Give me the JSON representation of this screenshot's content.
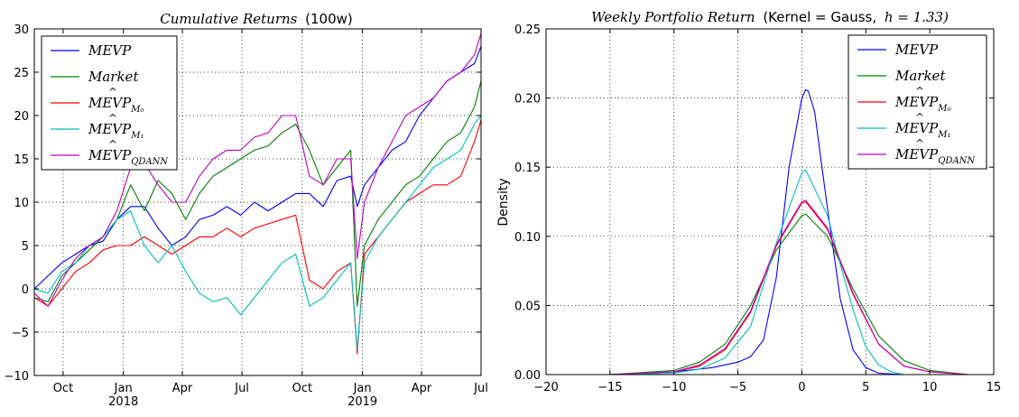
{
  "chart_data": [
    {
      "type": "line",
      "title_italic": "Cumulative Returns",
      "title_plain": "(100w)",
      "ylim": [
        -10,
        30
      ],
      "yticks": [
        -10,
        -5,
        0,
        5,
        10,
        15,
        20,
        25,
        30
      ],
      "ytick_labels": [
        "−10",
        "−5",
        "0",
        "5",
        "10",
        "15",
        "20",
        "25",
        "30"
      ],
      "xlim": [
        "2017-08-18",
        "2019-07-01"
      ],
      "xticks": [
        {
          "date": "2017-10-01",
          "label": "Oct",
          "year": ""
        },
        {
          "date": "2018-01-01",
          "label": "Jan",
          "year": "2018"
        },
        {
          "date": "2018-04-01",
          "label": "Apr",
          "year": ""
        },
        {
          "date": "2018-07-01",
          "label": "Jul",
          "year": ""
        },
        {
          "date": "2018-10-01",
          "label": "Oct",
          "year": ""
        },
        {
          "date": "2019-01-01",
          "label": "Jan",
          "year": "2019"
        },
        {
          "date": "2019-04-01",
          "label": "Apr",
          "year": ""
        },
        {
          "date": "2019-07-01",
          "label": "Jul",
          "year": ""
        }
      ],
      "grid": true,
      "legend_position": "upper-left",
      "series": [
        {
          "name": "MEVP",
          "legend_sub": "",
          "color": "#0000ff",
          "x": [
            "2017-08-18",
            "2017-09-08",
            "2017-09-29",
            "2017-10-20",
            "2017-11-10",
            "2017-12-01",
            "2017-12-22",
            "2018-01-12",
            "2018-02-02",
            "2018-02-23",
            "2018-03-16",
            "2018-04-06",
            "2018-04-27",
            "2018-05-18",
            "2018-06-08",
            "2018-06-29",
            "2018-07-20",
            "2018-08-10",
            "2018-08-31",
            "2018-09-21",
            "2018-10-12",
            "2018-11-02",
            "2018-11-23",
            "2018-12-14",
            "2018-12-24",
            "2019-01-04",
            "2019-01-25",
            "2019-02-15",
            "2019-03-08",
            "2019-03-29",
            "2019-04-19",
            "2019-05-10",
            "2019-05-31",
            "2019-06-21",
            "2019-07-01"
          ],
          "y": [
            0,
            1.5,
            3,
            4,
            5,
            5.5,
            8,
            9.5,
            9.5,
            7,
            5,
            6,
            8,
            8.5,
            9.5,
            8.5,
            10,
            9,
            10,
            11,
            11,
            9.5,
            12.5,
            13,
            9.5,
            12,
            14,
            16,
            17,
            20,
            22,
            24,
            25,
            26,
            28
          ]
        },
        {
          "name": "Market",
          "legend_sub": "",
          "color": "#008000",
          "x": [
            "2017-08-18",
            "2017-09-08",
            "2017-09-29",
            "2017-10-20",
            "2017-11-10",
            "2017-12-01",
            "2017-12-22",
            "2018-01-12",
            "2018-02-02",
            "2018-02-23",
            "2018-03-16",
            "2018-04-06",
            "2018-04-27",
            "2018-05-18",
            "2018-06-08",
            "2018-06-29",
            "2018-07-20",
            "2018-08-10",
            "2018-08-31",
            "2018-09-21",
            "2018-10-12",
            "2018-11-02",
            "2018-11-23",
            "2018-12-14",
            "2018-12-24",
            "2019-01-04",
            "2019-01-25",
            "2019-02-15",
            "2019-03-08",
            "2019-03-29",
            "2019-04-19",
            "2019-05-10",
            "2019-05-31",
            "2019-06-21",
            "2019-07-01"
          ],
          "y": [
            -1,
            -1.5,
            1.5,
            3,
            4.5,
            6,
            8,
            12,
            9,
            12.5,
            11,
            8,
            11,
            13,
            14,
            15,
            16,
            16.5,
            18,
            19,
            16,
            12,
            14,
            16,
            -2,
            5,
            8,
            10,
            12,
            13,
            15,
            17,
            18,
            21,
            24
          ]
        },
        {
          "name": "MEVP",
          "legend_sub": "M₀",
          "color": "#ff0000",
          "x": [
            "2017-08-18",
            "2017-09-08",
            "2017-09-29",
            "2017-10-20",
            "2017-11-10",
            "2017-12-01",
            "2017-12-22",
            "2018-01-12",
            "2018-02-02",
            "2018-02-23",
            "2018-03-16",
            "2018-04-06",
            "2018-04-27",
            "2018-05-18",
            "2018-06-08",
            "2018-06-29",
            "2018-07-20",
            "2018-08-10",
            "2018-08-31",
            "2018-09-21",
            "2018-10-12",
            "2018-11-02",
            "2018-11-23",
            "2018-12-14",
            "2018-12-24",
            "2019-01-04",
            "2019-01-25",
            "2019-02-15",
            "2019-03-08",
            "2019-03-29",
            "2019-04-19",
            "2019-05-10",
            "2019-05-31",
            "2019-06-21",
            "2019-07-01"
          ],
          "y": [
            -1,
            -2,
            0,
            2,
            3,
            4.5,
            5,
            5,
            6,
            5,
            4,
            5,
            6,
            6,
            7,
            6,
            7,
            7.5,
            8,
            8.5,
            1,
            0,
            2,
            3,
            -7.5,
            4,
            6,
            8,
            10,
            11,
            12,
            12,
            13,
            17,
            19.5
          ]
        },
        {
          "name": "MEVP",
          "legend_sub": "M₁",
          "color": "#00bfbf",
          "x": [
            "2017-08-18",
            "2017-09-08",
            "2017-09-29",
            "2017-10-20",
            "2017-11-10",
            "2017-12-01",
            "2017-12-22",
            "2018-01-12",
            "2018-02-02",
            "2018-02-23",
            "2018-03-16",
            "2018-04-06",
            "2018-04-27",
            "2018-05-18",
            "2018-06-08",
            "2018-06-29",
            "2018-07-20",
            "2018-08-10",
            "2018-08-31",
            "2018-09-21",
            "2018-10-12",
            "2018-11-02",
            "2018-11-23",
            "2018-12-14",
            "2018-12-24",
            "2019-01-04",
            "2019-01-25",
            "2019-02-15",
            "2019-03-08",
            "2019-03-29",
            "2019-04-19",
            "2019-05-10",
            "2019-05-31",
            "2019-06-21",
            "2019-07-01"
          ],
          "y": [
            0,
            -0.5,
            2,
            3,
            5,
            6,
            8,
            9,
            5,
            3,
            5,
            2,
            -0.5,
            -1.5,
            -1,
            -3,
            -1,
            1,
            3,
            4,
            -2,
            -1,
            1,
            3,
            -7,
            3,
            6,
            8,
            10,
            12,
            14,
            15,
            16,
            19,
            20
          ]
        },
        {
          "name": "MEVP",
          "legend_sub": "QDANN",
          "color": "#bf00bf",
          "x": [
            "2017-08-18",
            "2017-09-08",
            "2017-09-29",
            "2017-10-20",
            "2017-11-10",
            "2017-12-01",
            "2017-12-22",
            "2018-01-12",
            "2018-02-02",
            "2018-02-23",
            "2018-03-16",
            "2018-04-06",
            "2018-04-27",
            "2018-05-18",
            "2018-06-08",
            "2018-06-29",
            "2018-07-20",
            "2018-08-10",
            "2018-08-31",
            "2018-09-21",
            "2018-10-12",
            "2018-11-02",
            "2018-11-23",
            "2018-12-14",
            "2018-12-24",
            "2019-01-04",
            "2019-01-25",
            "2019-02-15",
            "2019-03-08",
            "2019-03-29",
            "2019-04-19",
            "2019-05-10",
            "2019-05-31",
            "2019-06-21",
            "2019-07-01"
          ],
          "y": [
            -0.5,
            -2,
            1,
            3.5,
            5,
            6,
            9,
            14,
            14.5,
            12,
            10,
            10,
            13,
            15,
            16,
            16,
            17.5,
            18,
            20,
            20,
            13,
            12,
            15,
            15,
            3.5,
            10,
            14,
            17,
            20,
            21,
            22,
            24,
            25,
            27,
            29.5
          ]
        }
      ]
    },
    {
      "type": "line",
      "title_italic": "Weekly Portfolio Return",
      "title_plain": "(Kernel = Gauss,",
      "title_h": "h = 1.33)",
      "ylabel": "Density",
      "xlim": [
        -20,
        15
      ],
      "ylim": [
        0,
        0.25
      ],
      "xticks": [
        -20,
        -15,
        -10,
        -5,
        0,
        5,
        10,
        15
      ],
      "xtick_labels": [
        "−20",
        "−15",
        "−10",
        "−5",
        "0",
        "5",
        "10",
        "15"
      ],
      "yticks": [
        0,
        0.05,
        0.1,
        0.15,
        0.2,
        0.25
      ],
      "ytick_labels": [
        "0.00",
        "0.05",
        "0.10",
        "0.15",
        "0.20",
        "0.25"
      ],
      "grid": true,
      "legend_position": "upper-right",
      "series": [
        {
          "name": "MEVP",
          "legend_sub": "",
          "color": "#0000ff",
          "x": [
            -15,
            -10,
            -7,
            -5,
            -4,
            -3,
            -2,
            -1,
            0,
            0.3,
            0.5,
            1,
            2,
            3,
            4,
            5,
            6,
            8
          ],
          "y": [
            0,
            0.002,
            0.005,
            0.009,
            0.013,
            0.025,
            0.07,
            0.15,
            0.2,
            0.206,
            0.205,
            0.19,
            0.12,
            0.055,
            0.018,
            0.005,
            0.001,
            0
          ]
        },
        {
          "name": "Market",
          "legend_sub": "",
          "color": "#008000",
          "x": [
            -15,
            -10,
            -8,
            -6,
            -4,
            -2,
            0,
            0.3,
            2,
            4,
            6,
            8,
            10,
            13
          ],
          "y": [
            0,
            0.003,
            0.009,
            0.022,
            0.05,
            0.09,
            0.115,
            0.116,
            0.1,
            0.062,
            0.028,
            0.01,
            0.003,
            0
          ]
        },
        {
          "name": "MEVP",
          "legend_sub": "M₀",
          "color": "#ff0000",
          "x": [
            -15,
            -10,
            -8,
            -6,
            -4,
            -2,
            0,
            0.3,
            2,
            4,
            6,
            8,
            10,
            13
          ],
          "y": [
            0,
            0.002,
            0.006,
            0.018,
            0.045,
            0.093,
            0.124,
            0.125,
            0.105,
            0.058,
            0.022,
            0.006,
            0.002,
            0
          ]
        },
        {
          "name": "MEVP",
          "legend_sub": "M₁",
          "color": "#00bfbf",
          "x": [
            -15,
            -10,
            -8,
            -6,
            -4,
            -2,
            0,
            0.3,
            2,
            3,
            4,
            5,
            6,
            7,
            8
          ],
          "y": [
            0,
            0.001,
            0.004,
            0.012,
            0.035,
            0.095,
            0.146,
            0.148,
            0.115,
            0.08,
            0.047,
            0.02,
            0.007,
            0.002,
            0
          ]
        },
        {
          "name": "MEVP",
          "legend_sub": "QDANN",
          "color": "#bf00bf",
          "x": [
            -15,
            -10,
            -8,
            -6,
            -4,
            -2,
            0,
            0.3,
            2,
            4,
            6,
            8,
            10,
            13
          ],
          "y": [
            0,
            0.002,
            0.007,
            0.019,
            0.046,
            0.094,
            0.125,
            0.126,
            0.106,
            0.059,
            0.022,
            0.006,
            0.002,
            0
          ]
        }
      ]
    }
  ]
}
